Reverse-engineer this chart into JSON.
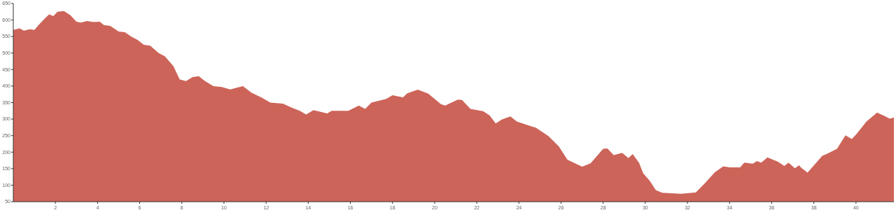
{
  "chart_data": {
    "type": "area",
    "x": [
      0,
      0.3,
      0.5,
      0.8,
      1.0,
      1.2,
      1.5,
      1.7,
      1.9,
      2.1,
      2.4,
      2.7,
      3.0,
      3.2,
      3.5,
      3.8,
      4.1,
      4.3,
      4.6,
      5.0,
      5.3,
      5.6,
      5.9,
      6.2,
      6.5,
      6.9,
      7.2,
      7.6,
      7.9,
      8.2,
      8.5,
      8.8,
      9.1,
      9.5,
      9.9,
      10.3,
      10.6,
      10.9,
      11.3,
      11.8,
      12.2,
      12.8,
      13.2,
      13.6,
      13.9,
      14.25,
      14.9,
      15.1,
      15.9,
      16.4,
      16.7,
      17.0,
      17.7,
      18.0,
      18.5,
      18.7,
      19.2,
      19.7,
      20.3,
      20.5,
      21.1,
      21.3,
      21.7,
      22.3,
      22.6,
      22.9,
      23.2,
      23.6,
      23.9,
      24.8,
      25.4,
      25.9,
      26.3,
      27.0,
      27.4,
      28.0,
      28.2,
      28.5,
      28.9,
      29.2,
      29.4,
      29.7,
      29.9,
      30.2,
      30.5,
      30.8,
      31.7,
      32.4,
      32.8,
      33.3,
      33.7,
      34.0,
      34.5,
      34.7,
      35.1,
      35.3,
      35.5,
      35.8,
      36.3,
      36.6,
      36.8,
      37.1,
      37.3,
      37.4,
      37.7,
      38.4,
      38.6,
      39.1,
      39.5,
      39.8,
      40.0,
      40.5,
      41.0,
      41.4,
      41.6,
      41.8
    ],
    "series": [
      {
        "color": "#cd6459",
        "values": [
          570,
          575,
          568,
          572,
          570,
          585,
          605,
          617,
          612,
          625,
          627,
          615,
          595,
          592,
          597,
          594,
          595,
          585,
          582,
          565,
          563,
          550,
          540,
          525,
          522,
          500,
          490,
          460,
          420,
          415,
          427,
          430,
          415,
          400,
          397,
          390,
          395,
          400,
          380,
          365,
          350,
          347,
          335,
          325,
          314,
          327,
          317,
          325,
          325,
          341,
          331,
          350,
          361,
          372,
          366,
          378,
          389,
          377,
          345,
          341,
          359,
          358,
          331,
          324,
          312,
          287,
          299,
          308,
          293,
          274,
          249,
          217,
          177,
          156,
          166,
          210,
          211,
          191,
          198,
          182,
          194,
          168,
          136,
          114,
          85,
          77,
          74,
          78,
          104,
          139,
          157,
          154,
          154,
          168,
          165,
          173,
          168,
          184,
          171,
          158,
          168,
          151,
          160,
          153,
          138,
          189,
          194,
          210,
          251,
          240,
          253,
          293,
          320,
          308,
          301,
          305
        ]
      }
    ],
    "xlim": [
      0,
      41.8
    ],
    "xticks": [
      2,
      4,
      6,
      8,
      10,
      12,
      14,
      16,
      18,
      20,
      22,
      24,
      26,
      28,
      30,
      32,
      34,
      36,
      38,
      40
    ],
    "ylim": [
      50,
      650
    ],
    "yticks": [
      50,
      100,
      150,
      200,
      250,
      300,
      350,
      400,
      450,
      500,
      550,
      600,
      650
    ],
    "grid": false
  }
}
